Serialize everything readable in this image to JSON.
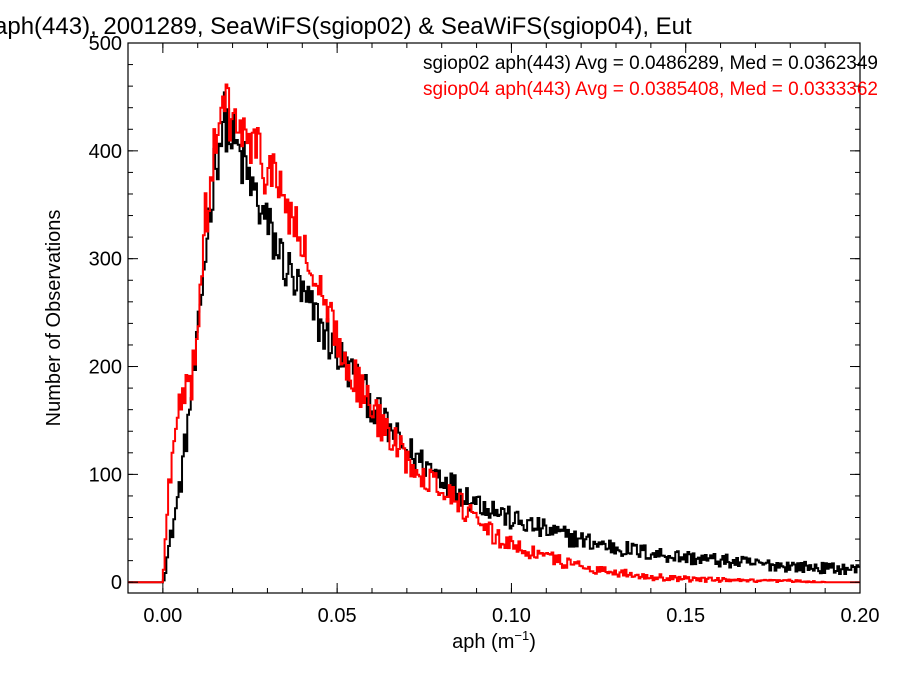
{
  "chart_data": {
    "type": "histogram-step",
    "title": "aph(443), 2001289, SeaWiFS(sgiop02) & SeaWiFS(sgiop04), Eut",
    "xlabel": "aph (m",
    "xlabel_sup": "−1",
    "xlabel_close": ")",
    "ylabel": "Number of Observations",
    "xlim": [
      -0.01,
      0.2
    ],
    "ylim": [
      -10,
      500
    ],
    "x_ticks": [
      0.0,
      0.05,
      0.1,
      0.15,
      0.2
    ],
    "x_tick_labels": [
      "0.00",
      "0.05",
      "0.10",
      "0.15",
      "0.20"
    ],
    "y_ticks": [
      0,
      100,
      200,
      300,
      400,
      500
    ],
    "y_tick_labels": [
      "0",
      "100",
      "200",
      "300",
      "400",
      "500"
    ],
    "bin_width": 0.0005,
    "legend": [
      {
        "text": "sgiop02 aph(443) Avg = 0.0486289, Med = 0.0362349",
        "color": "#000000"
      },
      {
        "text": "sgiop04 aph(443) Avg = 0.0385408, Med = 0.0333362",
        "color": "#ff0000"
      }
    ],
    "series": [
      {
        "color": "#000000",
        "x": [
          0.0,
          0.005,
          0.01,
          0.012,
          0.015,
          0.017,
          0.018,
          0.02,
          0.022,
          0.025,
          0.03,
          0.035,
          0.04,
          0.045,
          0.05,
          0.055,
          0.06,
          0.065,
          0.07,
          0.075,
          0.08,
          0.085,
          0.09,
          0.095,
          0.1,
          0.11,
          0.12,
          0.13,
          0.14,
          0.15,
          0.16,
          0.17,
          0.18,
          0.19,
          0.2
        ],
        "y": [
          0,
          90,
          220,
          300,
          390,
          420,
          430,
          410,
          395,
          370,
          330,
          295,
          265,
          240,
          212,
          190,
          165,
          140,
          122,
          110,
          98,
          85,
          75,
          68,
          58,
          48,
          39,
          32,
          27,
          23,
          20,
          17,
          15,
          13,
          12
        ]
      },
      {
        "color": "#ff0000",
        "x": [
          0.0,
          0.002,
          0.005,
          0.008,
          0.01,
          0.012,
          0.015,
          0.017,
          0.018,
          0.02,
          0.022,
          0.025,
          0.03,
          0.035,
          0.04,
          0.045,
          0.05,
          0.055,
          0.06,
          0.065,
          0.07,
          0.075,
          0.08,
          0.085,
          0.09,
          0.095,
          0.1,
          0.11,
          0.12,
          0.13,
          0.14,
          0.15,
          0.16,
          0.17,
          0.18,
          0.19,
          0.2
        ],
        "y": [
          0,
          100,
          165,
          180,
          240,
          330,
          400,
          430,
          440,
          430,
          420,
          405,
          385,
          355,
          310,
          265,
          225,
          190,
          160,
          135,
          115,
          100,
          88,
          75,
          55,
          43,
          35,
          23,
          15,
          9,
          5,
          3,
          2,
          1,
          1,
          0,
          0
        ]
      }
    ]
  }
}
